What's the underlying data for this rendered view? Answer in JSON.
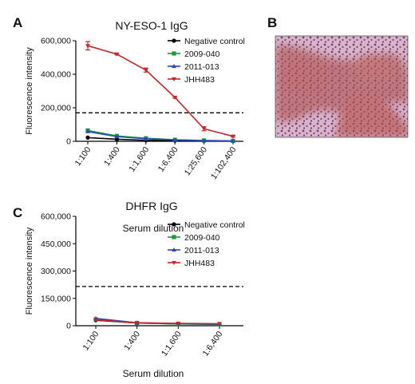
{
  "panels": {
    "A": {
      "letter": "A"
    },
    "B": {
      "letter": "B",
      "description": "Immunohistochemistry tissue section"
    },
    "C": {
      "letter": "C"
    }
  },
  "chart_data": [
    {
      "id": "A",
      "type": "line",
      "title": "NY-ESO-1 IgG",
      "xlabel": "Serum dilution",
      "ylabel": "Fluorescence intensity",
      "categories": [
        "1:100",
        "1:400",
        "1:1,600",
        "1:6,400",
        "1:25,600",
        "1:102,400"
      ],
      "ylim": [
        0,
        600000
      ],
      "yticks": [
        0,
        200000,
        400000,
        600000
      ],
      "ytick_labels": [
        "0",
        "200,000",
        "400,000",
        "600,000"
      ],
      "cutoff": 170000,
      "legend": "top-right",
      "series": [
        {
          "name": "Negative control",
          "color": "#000000",
          "marker": "circle",
          "values": [
            22000,
            12000,
            6000,
            4000,
            3000,
            2000
          ]
        },
        {
          "name": "2009-040",
          "color": "#1a9a3a",
          "marker": "square",
          "values": [
            65000,
            32000,
            18000,
            9000,
            5000,
            3000
          ]
        },
        {
          "name": "2011-013",
          "color": "#2e47b8",
          "marker": "triangle",
          "values": [
            58000,
            28000,
            15000,
            8000,
            4000,
            3000
          ]
        },
        {
          "name": "JHH483",
          "color": "#c0282d",
          "marker": "triangle-down",
          "values": [
            570000,
            520000,
            425000,
            262000,
            75000,
            30000
          ],
          "errors": [
            25000,
            5000,
            12000,
            5000,
            12000,
            5000
          ]
        }
      ]
    },
    {
      "id": "C",
      "type": "line",
      "title": "DHFR IgG",
      "xlabel": "Serum dilution",
      "ylabel": "Fluorescence intensity",
      "categories": [
        "1:100",
        "1:400",
        "1:1,600",
        "1:6,400"
      ],
      "ylim": [
        0,
        600000
      ],
      "yticks": [
        0,
        150000,
        300000,
        450000,
        600000
      ],
      "ytick_labels": [
        "0",
        "150,000",
        "300,000",
        "450,000",
        "600,000"
      ],
      "cutoff": 215000,
      "legend": "top-right",
      "series": [
        {
          "name": "Negative control",
          "color": "#000000",
          "marker": "circle",
          "values": [
            30000,
            15000,
            10000,
            8000
          ]
        },
        {
          "name": "2009-040",
          "color": "#1a9a3a",
          "marker": "square",
          "values": [
            35000,
            15000,
            10000,
            8000
          ]
        },
        {
          "name": "2011-013",
          "color": "#2e47b8",
          "marker": "triangle",
          "values": [
            40000,
            16000,
            12000,
            9000
          ]
        },
        {
          "name": "JHH483",
          "color": "#c0282d",
          "marker": "triangle-down",
          "values": [
            32000,
            16000,
            13000,
            11000
          ]
        }
      ]
    }
  ]
}
